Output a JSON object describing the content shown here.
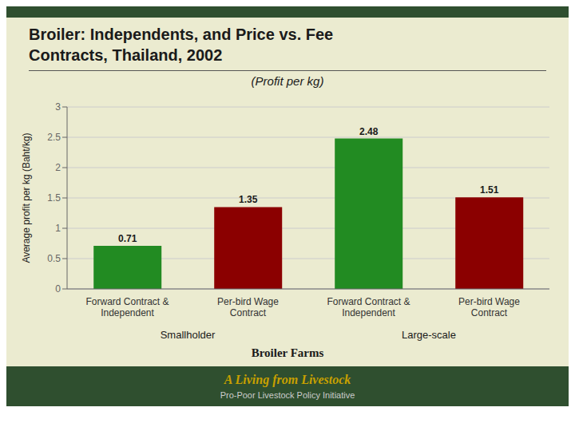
{
  "chart_data": {
    "type": "bar",
    "title": "Broiler: Independents, and Price vs. Fee\nContracts, Thailand, 2002",
    "subtitle": "(Profit per kg)",
    "ylabel": "Average profit per kg  (Baht/kg)",
    "xlabel": "Broiler Farms",
    "categories": [
      "Forward Contract &\nIndependent",
      "Per-bird Wage\nContract",
      "Forward Contract &\nIndependent",
      "Per-bird Wage\nContract"
    ],
    "group_labels": [
      "Smallholder",
      "Large-scale"
    ],
    "values": [
      0.71,
      1.35,
      2.48,
      1.51
    ],
    "colors": [
      "#228B22",
      "#8B0000",
      "#228B22",
      "#8B0000"
    ],
    "ylim": [
      0,
      3
    ],
    "yticks": [
      0,
      0.5,
      1,
      1.5,
      2,
      2.5,
      3
    ],
    "grid": true,
    "data_labels": true,
    "annotations": [
      "A Living from Livestock",
      "Pro-Poor Livestock Policy Initiative"
    ]
  }
}
